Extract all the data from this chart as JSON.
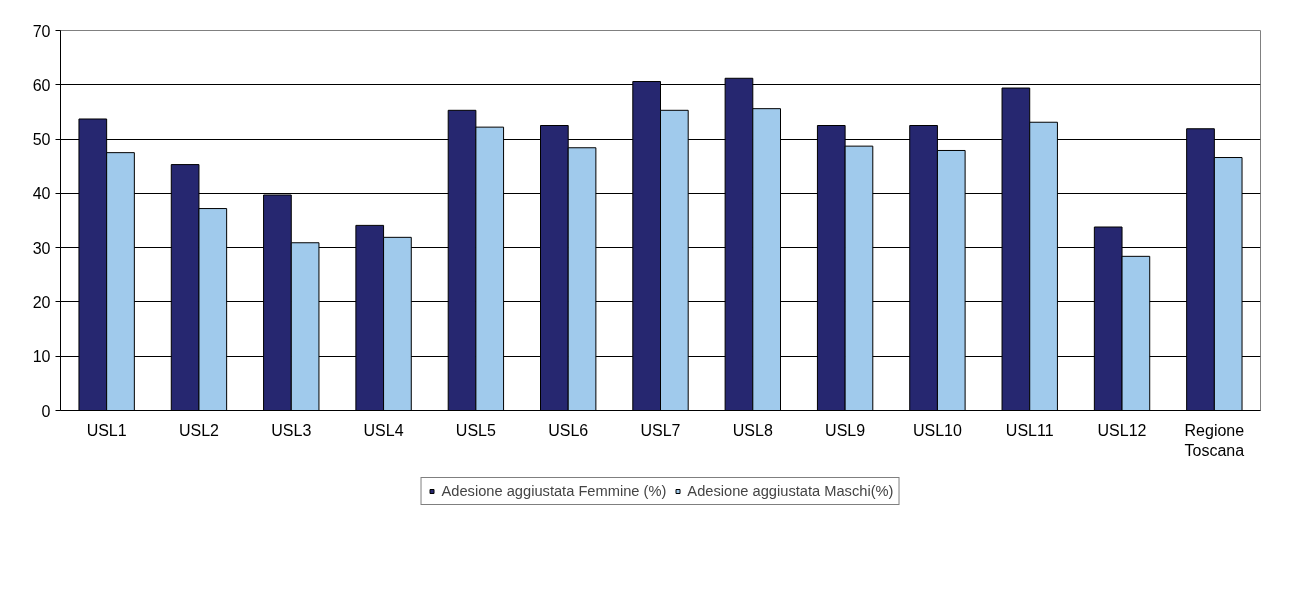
{
  "chart_data": {
    "type": "bar",
    "categories": [
      "USL1",
      "USL2",
      "USL3",
      "USL4",
      "USL5",
      "USL6",
      "USL7",
      "USL8",
      "USL9",
      "USL10",
      "USL11",
      "USL12",
      "Regione Toscana"
    ],
    "series": [
      {
        "name": "Adesione aggiustata Femmine (%)",
        "color": "#262770",
        "values": [
          53.7,
          45.3,
          39.7,
          34.1,
          55.3,
          52.5,
          60.6,
          61.2,
          52.5,
          52.5,
          59.4,
          33.8,
          51.9
        ]
      },
      {
        "name": "Adesione aggiustata Maschi(%)",
        "color": "#a0caec",
        "values": [
          47.5,
          37.2,
          30.9,
          31.9,
          52.2,
          48.4,
          55.3,
          55.6,
          48.7,
          47.9,
          53.1,
          28.4,
          46.6
        ]
      }
    ],
    "ylim": [
      0,
      70
    ],
    "yticks": [
      0,
      10,
      20,
      30,
      40,
      50,
      60,
      70
    ],
    "grid": "y",
    "legend": "bottom"
  }
}
